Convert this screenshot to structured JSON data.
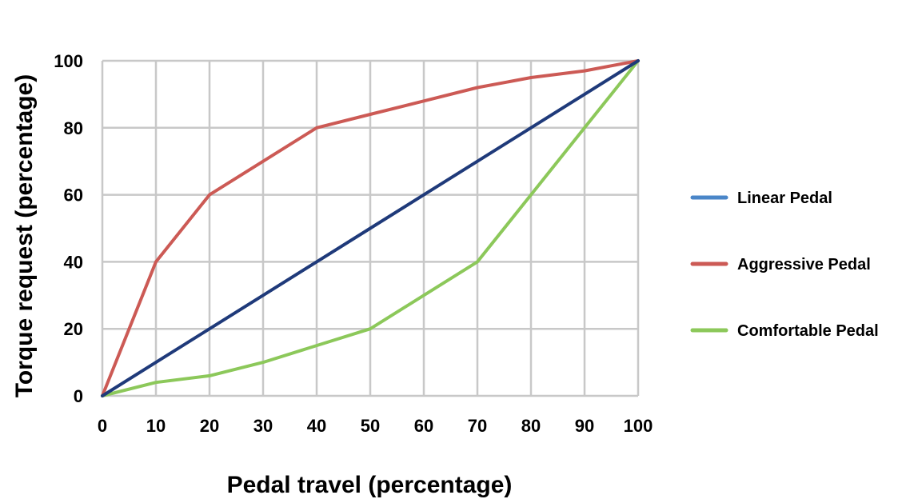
{
  "chart_data": {
    "type": "line",
    "xlabel": "Pedal travel (percentage)",
    "ylabel": "Torque request (percentage)",
    "xlim": [
      0,
      100
    ],
    "ylim": [
      0,
      100
    ],
    "x_ticks": [
      0,
      10,
      20,
      30,
      40,
      50,
      60,
      70,
      80,
      90,
      100
    ],
    "y_ticks": [
      0,
      20,
      40,
      60,
      80,
      100
    ],
    "grid": true,
    "legend_position": "right",
    "series": [
      {
        "name": "Linear Pedal",
        "color": "#1f3a7a",
        "legend_color": "#4a86c8",
        "x": [
          0,
          10,
          20,
          30,
          40,
          50,
          60,
          70,
          80,
          90,
          100
        ],
        "y": [
          0,
          10,
          20,
          30,
          40,
          50,
          60,
          70,
          80,
          90,
          100
        ]
      },
      {
        "name": "Aggressive Pedal",
        "color": "#cc5a55",
        "legend_color": "#cc5a55",
        "x": [
          0,
          10,
          20,
          30,
          40,
          50,
          60,
          70,
          80,
          90,
          100
        ],
        "y": [
          0,
          40,
          60,
          70,
          80,
          84,
          88,
          92,
          95,
          97,
          100
        ]
      },
      {
        "name": "Comfortable Pedal",
        "color": "#8cc85a",
        "legend_color": "#8cc85a",
        "x": [
          0,
          10,
          20,
          30,
          40,
          50,
          60,
          70,
          80,
          90,
          100
        ],
        "y": [
          0,
          4,
          6,
          10,
          15,
          20,
          30,
          40,
          60,
          80,
          100
        ]
      }
    ]
  }
}
